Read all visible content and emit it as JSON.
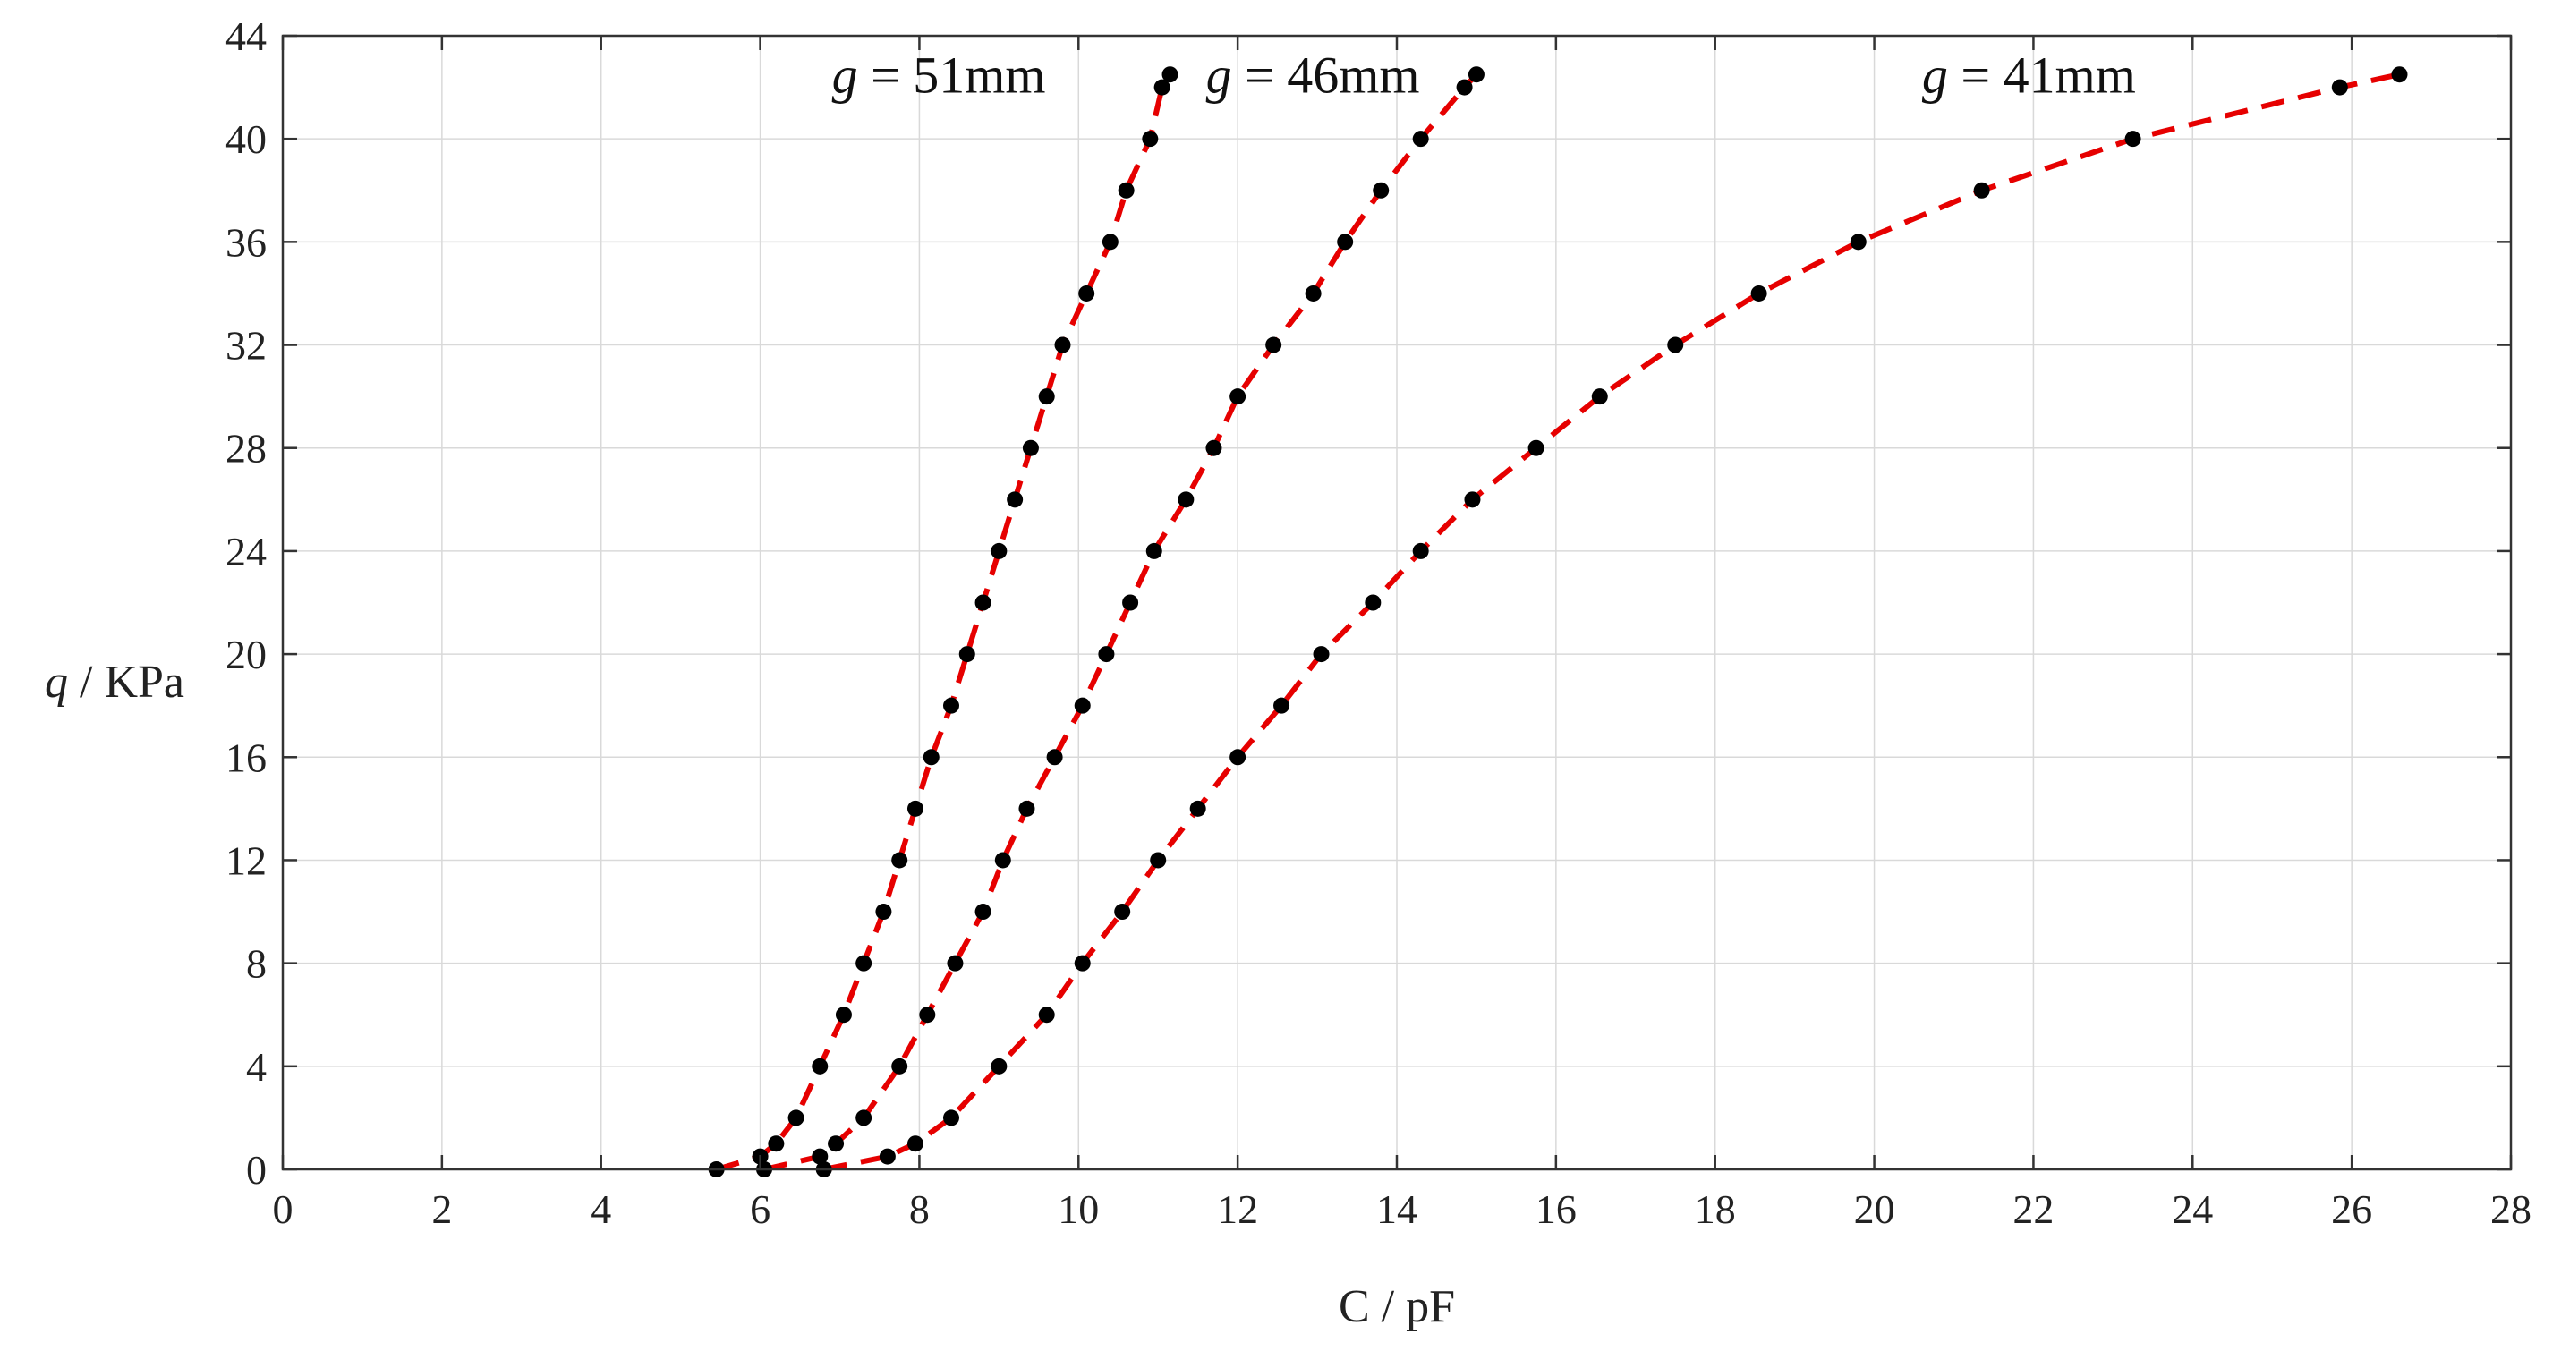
{
  "chart_data": {
    "type": "scatter",
    "title": "",
    "xlabel": "C / pF",
    "ylabel_italic": "q",
    "ylabel_rest": " / KPa",
    "xlim": [
      0,
      28
    ],
    "ylim": [
      0,
      44
    ],
    "xticks": [
      0,
      2,
      4,
      6,
      8,
      10,
      12,
      14,
      16,
      18,
      20,
      22,
      24,
      26,
      28
    ],
    "yticks": [
      0,
      4,
      8,
      12,
      16,
      20,
      24,
      28,
      32,
      36,
      40,
      44
    ],
    "grid": true,
    "series": [
      {
        "name": "g = 51mm",
        "label_italic": "g",
        "label_rest": " = 51mm",
        "line_color": "#e60000",
        "marker_color": "#000000",
        "points": [
          [
            5.45,
            0
          ],
          [
            6.0,
            0.5
          ],
          [
            6.2,
            1
          ],
          [
            6.45,
            2
          ],
          [
            6.75,
            4
          ],
          [
            7.05,
            6
          ],
          [
            7.3,
            8
          ],
          [
            7.55,
            10
          ],
          [
            7.75,
            12
          ],
          [
            7.95,
            14
          ],
          [
            8.15,
            16
          ],
          [
            8.4,
            18
          ],
          [
            8.6,
            20
          ],
          [
            8.8,
            22
          ],
          [
            9.0,
            24
          ],
          [
            9.2,
            26
          ],
          [
            9.4,
            28
          ],
          [
            9.6,
            30
          ],
          [
            9.8,
            32
          ],
          [
            10.1,
            34
          ],
          [
            10.4,
            36
          ],
          [
            10.6,
            38
          ],
          [
            10.9,
            40
          ],
          [
            11.05,
            42
          ],
          [
            11.15,
            42.5
          ]
        ]
      },
      {
        "name": "g = 46mm",
        "label_italic": "g",
        "label_rest": " = 46mm",
        "line_color": "#e60000",
        "marker_color": "#000000",
        "points": [
          [
            6.05,
            0
          ],
          [
            6.75,
            0.5
          ],
          [
            6.95,
            1
          ],
          [
            7.3,
            2
          ],
          [
            7.75,
            4
          ],
          [
            8.1,
            6
          ],
          [
            8.45,
            8
          ],
          [
            8.8,
            10
          ],
          [
            9.05,
            12
          ],
          [
            9.35,
            14
          ],
          [
            9.7,
            16
          ],
          [
            10.05,
            18
          ],
          [
            10.35,
            20
          ],
          [
            10.65,
            22
          ],
          [
            10.95,
            24
          ],
          [
            11.35,
            26
          ],
          [
            11.7,
            28
          ],
          [
            12.0,
            30
          ],
          [
            12.45,
            32
          ],
          [
            12.95,
            34
          ],
          [
            13.35,
            36
          ],
          [
            13.8,
            38
          ],
          [
            14.3,
            40
          ],
          [
            14.85,
            42
          ],
          [
            15.0,
            42.5
          ]
        ]
      },
      {
        "name": "g = 41mm",
        "label_italic": "g",
        "label_rest": " = 41mm",
        "line_color": "#e60000",
        "marker_color": "#000000",
        "points": [
          [
            6.8,
            0
          ],
          [
            7.6,
            0.5
          ],
          [
            7.95,
            1
          ],
          [
            8.4,
            2
          ],
          [
            9.0,
            4
          ],
          [
            9.6,
            6
          ],
          [
            10.05,
            8
          ],
          [
            10.55,
            10
          ],
          [
            11.0,
            12
          ],
          [
            11.5,
            14
          ],
          [
            12.0,
            16
          ],
          [
            12.55,
            18
          ],
          [
            13.05,
            20
          ],
          [
            13.7,
            22
          ],
          [
            14.3,
            24
          ],
          [
            14.95,
            26
          ],
          [
            15.75,
            28
          ],
          [
            16.55,
            30
          ],
          [
            17.5,
            32
          ],
          [
            18.55,
            34
          ],
          [
            19.8,
            36
          ],
          [
            21.35,
            38
          ],
          [
            23.25,
            40
          ],
          [
            25.85,
            42
          ],
          [
            26.6,
            42.5
          ]
        ]
      }
    ],
    "annotations": [
      {
        "series": 0,
        "text_italic": "g",
        "text_rest": " = 51mm",
        "x": 6.9,
        "y": 41.8
      },
      {
        "series": 1,
        "text_italic": "g",
        "text_rest": " = 46mm",
        "x": 11.6,
        "y": 41.8
      },
      {
        "series": 2,
        "text_italic": "g",
        "text_rest": " = 41mm",
        "x": 20.6,
        "y": 41.8
      }
    ]
  }
}
